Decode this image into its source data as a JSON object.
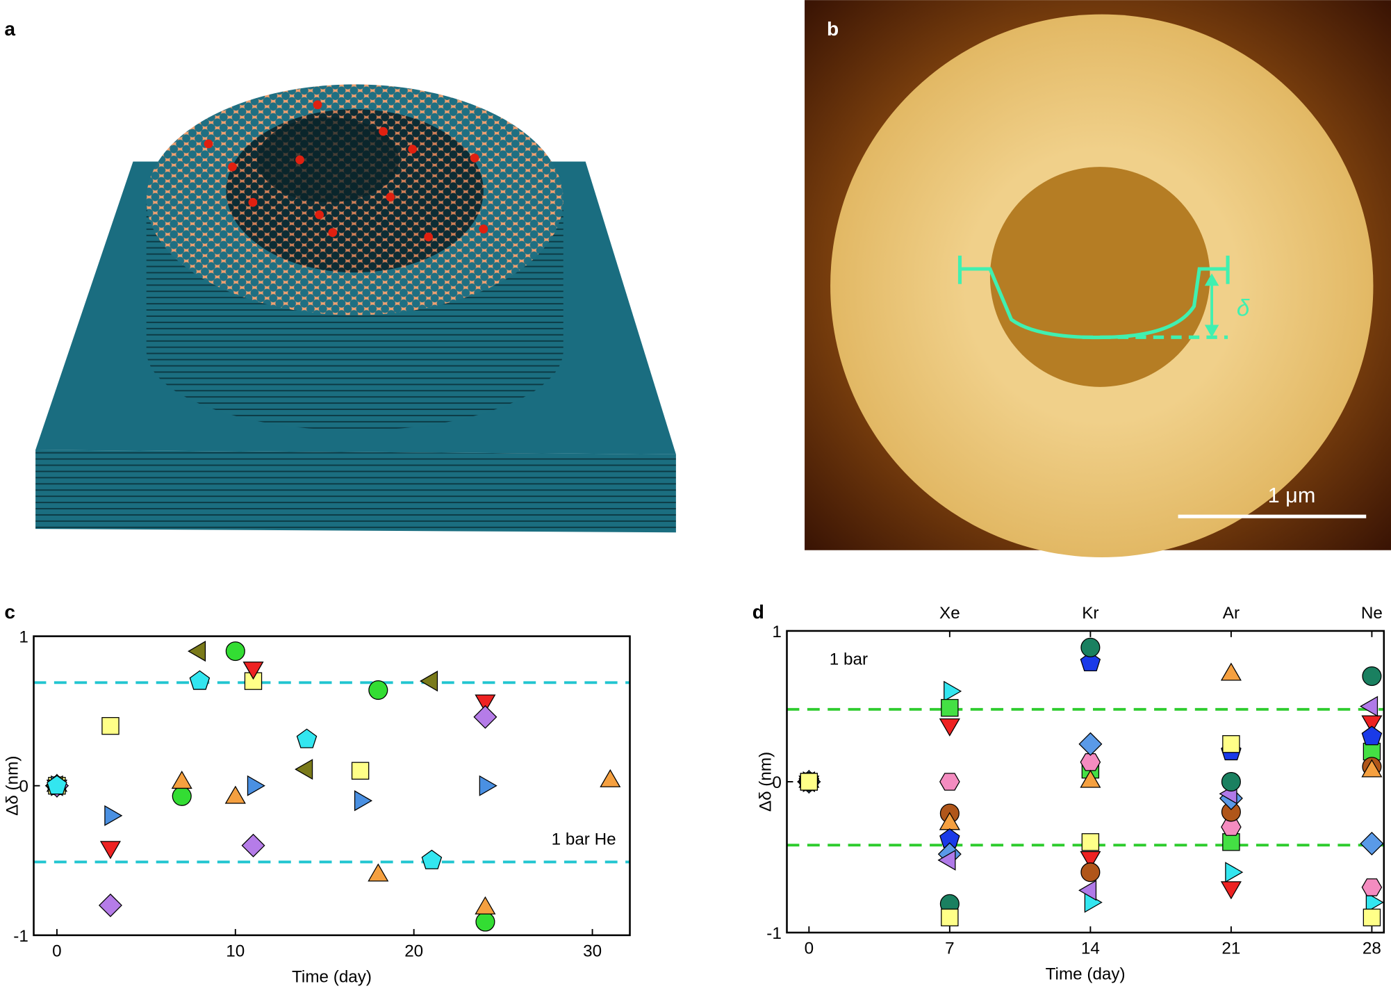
{
  "panel_labels": [
    "a",
    "b",
    "c",
    "d"
  ],
  "image_b": {
    "scale_bar": "1 μm",
    "delta_label": "δ"
  },
  "chart_data": [
    {
      "type": "scatter",
      "x_label": "Time (day)",
      "y_label": "Δδ (nm)",
      "annotation": "1 bar He",
      "xlim": [
        -1.3,
        32.1
      ],
      "ylim": [
        -1,
        1
      ],
      "xticks": [
        0,
        10,
        20,
        30
      ],
      "yticks": [
        -1,
        0,
        1
      ],
      "reference_lines": {
        "values": [
          0.69,
          -0.51
        ],
        "color": "#22c5d0",
        "style": "dashed"
      },
      "series": [
        {
          "marker": "circle",
          "color": "#33dd33",
          "x": [
            0,
            7,
            10,
            18,
            24
          ],
          "values": [
            0,
            -0.07,
            0.9,
            0.64,
            -0.91
          ]
        },
        {
          "marker": "triangle-up",
          "color": "#f5a040",
          "x": [
            0,
            7,
            10,
            18,
            24,
            31
          ],
          "values": [
            0,
            0.02,
            -0.08,
            -0.6,
            -0.82,
            0.03
          ]
        },
        {
          "marker": "square",
          "color": "#ffff88",
          "x": [
            0,
            3,
            11,
            17
          ],
          "values": [
            0,
            0.4,
            0.7,
            0.1
          ]
        },
        {
          "marker": "triangle-right",
          "color": "#4a90e2",
          "x": [
            0,
            3,
            11,
            17,
            24
          ],
          "values": [
            0,
            -0.2,
            0,
            -0.1,
            0
          ]
        },
        {
          "marker": "triangle-down",
          "color": "#ee2222",
          "x": [
            0,
            3,
            11,
            24
          ],
          "values": [
            0,
            -0.41,
            0.79,
            0.57
          ]
        },
        {
          "marker": "diamond",
          "color": "#b57ce8",
          "x": [
            0,
            3,
            11,
            24
          ],
          "values": [
            0,
            -0.8,
            -0.4,
            0.46
          ]
        },
        {
          "marker": "triangle-left",
          "color": "#7a7a1a",
          "x": [
            0,
            8,
            14,
            21
          ],
          "values": [
            0,
            0.9,
            0.11,
            0.7
          ]
        },
        {
          "marker": "pentagon",
          "color": "#33e6f0",
          "x": [
            0,
            8,
            14,
            21
          ],
          "values": [
            0,
            0.7,
            0.31,
            -0.5
          ]
        }
      ]
    },
    {
      "type": "scatter",
      "x_label": "Time (day)",
      "y_label": "Δδ (nm)",
      "annotation": "1 bar",
      "xlim": [
        -1.1,
        28.6
      ],
      "ylim": [
        -1,
        1
      ],
      "xticks": [
        0,
        7,
        14,
        21,
        28
      ],
      "yticks": [
        -1,
        0,
        1
      ],
      "x2ticks": [
        {
          "value": 7,
          "label": "Xe"
        },
        {
          "value": 14,
          "label": "Kr"
        },
        {
          "value": 21,
          "label": "Ar"
        },
        {
          "value": 28,
          "label": "Ne"
        }
      ],
      "reference_lines": {
        "values": [
          0.48,
          -0.42
        ],
        "color": "#2ecc2e",
        "style": "dashed"
      },
      "series": [
        {
          "marker": "triangle-right",
          "color": "#33e6f0",
          "x": [
            0,
            7,
            14,
            21,
            28
          ],
          "values": [
            0,
            0.6,
            -0.8,
            -0.6,
            -0.8
          ]
        },
        {
          "marker": "square",
          "color": "#44e044",
          "x": [
            0,
            7,
            14,
            21,
            28
          ],
          "values": [
            0,
            0.49,
            0.08,
            -0.4,
            0.2
          ]
        },
        {
          "marker": "triangle-down",
          "color": "#ee2222",
          "x": [
            0,
            7,
            14,
            21,
            28
          ],
          "values": [
            0,
            0.38,
            -0.5,
            -0.7,
            0.4
          ]
        },
        {
          "marker": "hexagon",
          "color": "#f48cc0",
          "x": [
            0,
            7,
            14,
            21,
            28
          ],
          "values": [
            0,
            0,
            0.13,
            -0.3,
            -0.7
          ]
        },
        {
          "marker": "circle",
          "color": "#b0561a",
          "x": [
            0,
            7,
            14,
            21,
            28
          ],
          "values": [
            0,
            -0.21,
            -0.6,
            -0.2,
            0.1
          ]
        },
        {
          "marker": "triangle-up",
          "color": "#f5a040",
          "x": [
            0,
            7,
            14,
            21,
            28
          ],
          "values": [
            0,
            -0.28,
            0,
            0.71,
            0.07
          ]
        },
        {
          "marker": "pentagon",
          "color": "#1a3ae8",
          "x": [
            0,
            7,
            14,
            21,
            28
          ],
          "values": [
            0,
            -0.38,
            0.79,
            0.2,
            0.3
          ]
        },
        {
          "marker": "diamond",
          "color": "#5a9ae8",
          "x": [
            0,
            7,
            14,
            21,
            28
          ],
          "values": [
            0,
            -0.48,
            0.25,
            -0.11,
            -0.41
          ]
        },
        {
          "marker": "triangle-left",
          "color": "#b07ae8",
          "x": [
            0,
            7,
            14,
            21,
            28
          ],
          "values": [
            0,
            -0.52,
            -0.72,
            -0.08,
            0.5
          ]
        },
        {
          "marker": "circle",
          "color": "#1a8060",
          "x": [
            0,
            7,
            14,
            21,
            28
          ],
          "values": [
            0,
            -0.81,
            0.89,
            0,
            0.7
          ]
        },
        {
          "marker": "square",
          "color": "#ffff88",
          "x": [
            0,
            7,
            14,
            21,
            28
          ],
          "values": [
            0,
            -0.9,
            -0.4,
            0.25,
            -0.9
          ]
        }
      ]
    }
  ]
}
